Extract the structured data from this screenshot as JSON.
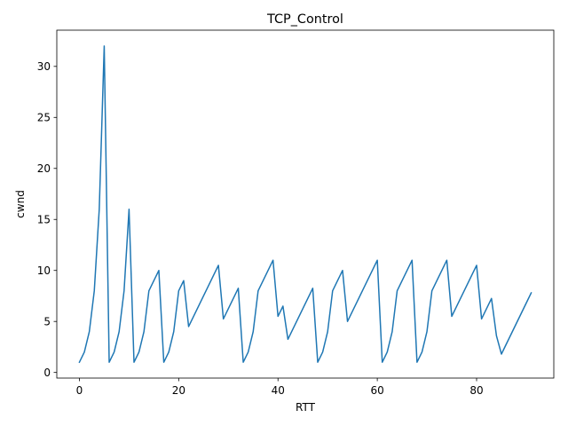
{
  "chart_data": {
    "type": "line",
    "title": "TCP_Control",
    "xlabel": "RTT",
    "ylabel": "cwnd",
    "xlim": [
      -4.55,
      95.55
    ],
    "ylim": [
      -0.55,
      33.55
    ],
    "xticks": [
      0,
      20,
      40,
      60,
      80
    ],
    "yticks": [
      0,
      5,
      10,
      15,
      20,
      25,
      30
    ],
    "grid": false,
    "series": [
      {
        "color": "#1f77b4",
        "x": [
          0,
          1,
          2,
          3,
          4,
          5,
          6,
          7,
          8,
          9,
          10,
          11,
          12,
          13,
          14,
          15,
          16,
          17,
          18,
          19,
          20,
          21,
          22,
          23,
          24,
          25,
          26,
          27,
          28,
          29,
          30,
          31,
          32,
          33,
          34,
          35,
          36,
          37,
          38,
          39,
          40,
          41,
          42,
          43,
          44,
          45,
          46,
          47,
          48,
          49,
          50,
          51,
          52,
          53,
          54,
          55,
          56,
          57,
          58,
          59,
          60,
          61,
          62,
          63,
          64,
          65,
          66,
          67,
          68,
          69,
          70,
          71,
          72,
          73,
          74,
          75,
          76,
          77,
          78,
          79,
          80,
          81,
          82,
          83,
          84,
          85,
          86,
          87,
          88,
          89,
          90,
          91
        ],
        "y": [
          1,
          2,
          4,
          8,
          16,
          32,
          1,
          2,
          4,
          8,
          16,
          1,
          2,
          4,
          8,
          9,
          10,
          1,
          2,
          4,
          8,
          9,
          4.5,
          5.5,
          6.5,
          7.5,
          8.5,
          9.5,
          10.5,
          5.25,
          6.25,
          7.25,
          8.25,
          1,
          2,
          4,
          8,
          9,
          10,
          11,
          5.5,
          6.5,
          3.25,
          4.25,
          5.25,
          6.25,
          7.25,
          8.25,
          1,
          2,
          4,
          8,
          9,
          10,
          5,
          6,
          7,
          8,
          9,
          10,
          11,
          1,
          2,
          4,
          8,
          9,
          10,
          11,
          1,
          2,
          4,
          8,
          9,
          10,
          11,
          5.5,
          6.5,
          7.5,
          8.5,
          9.5,
          10.5,
          5.25,
          6.25,
          7.25,
          3.6,
          1.8,
          2.8,
          3.8,
          4.8,
          5.8,
          6.8,
          7.8
        ]
      }
    ]
  }
}
